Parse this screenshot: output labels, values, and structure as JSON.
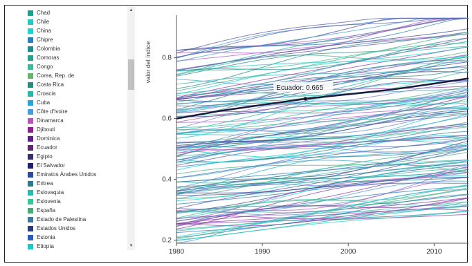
{
  "legend": {
    "items": [
      {
        "label": "Chad",
        "color": "#1f9e8e"
      },
      {
        "label": "Chile",
        "color": "#26c6c6"
      },
      {
        "label": "China",
        "color": "#1fd3d3"
      },
      {
        "label": "Chipre",
        "color": "#2c7fb8"
      },
      {
        "label": "Colombia",
        "color": "#238b8b"
      },
      {
        "label": "Comoras",
        "color": "#2ba08f"
      },
      {
        "label": "Congo",
        "color": "#3cb89a"
      },
      {
        "label": "Corea, Rep. de",
        "color": "#66b36a"
      },
      {
        "label": "Costa Rica",
        "color": "#2a8a7a"
      },
      {
        "label": "Croacia",
        "color": "#2fb5a8"
      },
      {
        "label": "Cuba",
        "color": "#2aa6d6"
      },
      {
        "label": "Côte d'Ivoire",
        "color": "#4a9bd6"
      },
      {
        "label": "Dinamarca",
        "color": "#b455b8"
      },
      {
        "label": "Djibouti",
        "color": "#8b1f8b"
      },
      {
        "label": "Dominica",
        "color": "#5a1f8b"
      },
      {
        "label": "Ecuador",
        "color": "#5a2a6e"
      },
      {
        "label": "Egipto",
        "color": "#3a2a70"
      },
      {
        "label": "El Salvador",
        "color": "#1f1f6e"
      },
      {
        "label": "Emiratos Árabes Unidos",
        "color": "#2c4a9a"
      },
      {
        "label": "Eritrea",
        "color": "#2a7a8a"
      },
      {
        "label": "Eslovaquia",
        "color": "#2fb8b0"
      },
      {
        "label": "Eslovenia",
        "color": "#3ac49a"
      },
      {
        "label": "España",
        "color": "#48a878"
      },
      {
        "label": "Estado de Palestina",
        "color": "#3a7a9a"
      },
      {
        "label": "Estados Unidos",
        "color": "#2a3a7a"
      },
      {
        "label": "Estonia",
        "color": "#2a5ab8"
      },
      {
        "label": "Etiopía",
        "color": "#1fc8c8"
      }
    ]
  },
  "chart_data": {
    "type": "line",
    "title": "",
    "xlabel": "",
    "ylabel": "valor del índice",
    "xlim": [
      1980,
      2014
    ],
    "ylim": [
      0.19,
      0.94
    ],
    "xticks": [
      "1980",
      "1990",
      "2000",
      "2010"
    ],
    "yticks": [
      "0.2",
      "0.4",
      "0.6",
      "0.8"
    ],
    "grid": false,
    "highlight": {
      "name": "Ecuador",
      "color": "#1a1a3a",
      "x": [
        1980,
        1985,
        1990,
        1995,
        2000,
        2005,
        2010,
        2014
      ],
      "y": [
        0.6,
        0.625,
        0.645,
        0.665,
        0.68,
        0.695,
        0.715,
        0.732
      ],
      "tooltip": {
        "x": 1995,
        "y": 0.665,
        "label": "Ecuador: 0.665"
      }
    },
    "background_series_count": 140,
    "series_colors": [
      "#2bb5b5",
      "#4aa0d0",
      "#8b3fa8",
      "#2a8a8a",
      "#3ac4a0",
      "#5a5ab0",
      "#1fd0d0",
      "#6a8ad0",
      "#b060c0",
      "#2c7fb8",
      "#48b08a",
      "#3a4a9a"
    ]
  }
}
